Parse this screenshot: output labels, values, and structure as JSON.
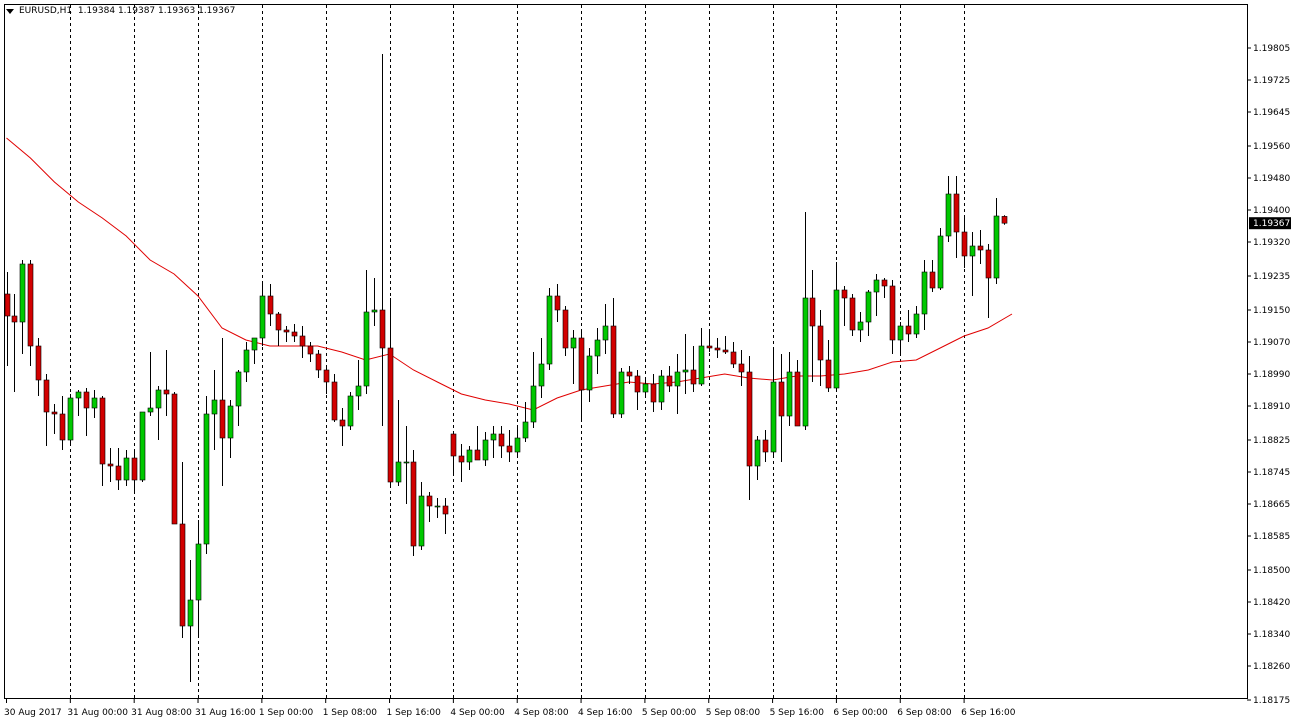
{
  "header": {
    "symbol": "EURUSD,H1",
    "ohlc": "1.19384 1.19387 1.19363 1.19367"
  },
  "colors": {
    "background": "#ffffff",
    "frame": "#000000",
    "bull": "#00c800",
    "bear": "#d20000",
    "wick": "#000000",
    "ma_line": "#e00000",
    "separator": "#000000",
    "price_tag_bg": "#000000",
    "price_tag_text": "#ffffff"
  },
  "chart_data": {
    "type": "candlestick",
    "symbol": "EURUSD",
    "timeframe": "H1",
    "grid": false,
    "ylim": [
      1.18175,
      1.19845
    ],
    "x_tick_labels": [
      "30 Aug 2017",
      "31 Aug 00:00",
      "31 Aug 08:00",
      "31 Aug 16:00",
      "1 Sep 00:00",
      "1 Sep 08:00",
      "1 Sep 16:00",
      "4 Sep 00:00",
      "4 Sep 08:00",
      "4 Sep 16:00",
      "5 Sep 00:00",
      "5 Sep 08:00",
      "5 Sep 16:00",
      "6 Sep 00:00",
      "6 Sep 08:00",
      "6 Sep 16:00"
    ],
    "separator_after_tick": [
      1,
      2,
      3,
      4,
      5,
      6,
      7,
      8,
      9,
      10,
      11,
      12,
      13,
      14,
      15
    ],
    "y_tick_labels": [
      "1.19805",
      "1.19725",
      "1.19645",
      "1.19560",
      "1.19480",
      "1.19400",
      "1.19320",
      "1.19235",
      "1.19150",
      "1.19070",
      "1.18990",
      "1.18910",
      "1.18825",
      "1.18745",
      "1.18665",
      "1.18585",
      "1.18500",
      "1.18420",
      "1.18340",
      "1.18260",
      "1.18175"
    ],
    "y_tick_values": [
      1.19805,
      1.19725,
      1.19645,
      1.1956,
      1.1948,
      1.194,
      1.1932,
      1.19235,
      1.1915,
      1.1907,
      1.1899,
      1.1891,
      1.18825,
      1.18745,
      1.18665,
      1.18585,
      1.185,
      1.1842,
      1.1834,
      1.1826,
      1.18175
    ],
    "current_price": "1.19367",
    "candles": [
      [
        1.1919,
        1.19245,
        1.1901,
        1.19135
      ],
      [
        1.19135,
        1.1919,
        1.18945,
        1.1912
      ],
      [
        1.1912,
        1.19275,
        1.1904,
        1.19265
      ],
      [
        1.19265,
        1.19275,
        1.1901,
        1.1906
      ],
      [
        1.1906,
        1.1908,
        1.18935,
        1.18975
      ],
      [
        1.18975,
        1.1899,
        1.1881,
        1.18895
      ],
      [
        1.18895,
        1.18915,
        1.1884,
        1.1889
      ],
      [
        1.1889,
        1.18935,
        1.188,
        1.18825
      ],
      [
        1.18825,
        1.1894,
        1.18815,
        1.1893
      ],
      [
        1.1893,
        1.1895,
        1.18885,
        1.18945
      ],
      [
        1.18945,
        1.18955,
        1.18835,
        1.18905
      ],
      [
        1.18905,
        1.1895,
        1.1888,
        1.1893
      ],
      [
        1.1893,
        1.18935,
        1.1871,
        1.18765
      ],
      [
        1.18765,
        1.18805,
        1.1872,
        1.1876
      ],
      [
        1.1876,
        1.18805,
        1.187,
        1.18725
      ],
      [
        1.18725,
        1.188,
        1.1871,
        1.1878
      ],
      [
        1.1878,
        1.188,
        1.1869,
        1.18725
      ],
      [
        1.18725,
        1.1889,
        1.1872,
        1.18895
      ],
      [
        1.18895,
        1.19045,
        1.18885,
        1.18905
      ],
      [
        1.18905,
        1.1896,
        1.18825,
        1.1895
      ],
      [
        1.1895,
        1.1905,
        1.18885,
        1.1894
      ],
      [
        1.1894,
        1.18945,
        1.1862,
        1.18615
      ],
      [
        1.18615,
        1.1877,
        1.1833,
        1.1836
      ],
      [
        1.1836,
        1.18525,
        1.1822,
        1.18425
      ],
      [
        1.18425,
        1.18625,
        1.1833,
        1.18565
      ],
      [
        1.18565,
        1.18935,
        1.1854,
        1.1889
      ],
      [
        1.1889,
        1.19,
        1.188,
        1.18925
      ],
      [
        1.18925,
        1.1908,
        1.1871,
        1.1883
      ],
      [
        1.1883,
        1.18925,
        1.1878,
        1.1891
      ],
      [
        1.1891,
        1.19,
        1.1886,
        1.18995
      ],
      [
        1.18995,
        1.1907,
        1.1897,
        1.1905
      ],
      [
        1.1905,
        1.1908,
        1.19015,
        1.1908
      ],
      [
        1.1908,
        1.19215,
        1.1906,
        1.19185
      ],
      [
        1.19185,
        1.19215,
        1.1911,
        1.1914
      ],
      [
        1.1914,
        1.19145,
        1.1906,
        1.191
      ],
      [
        1.191,
        1.1911,
        1.1907,
        1.19095
      ],
      [
        1.19095,
        1.19115,
        1.1907,
        1.19085
      ],
      [
        1.19085,
        1.1911,
        1.1903,
        1.1906
      ],
      [
        1.1906,
        1.1907,
        1.1902,
        1.1904
      ],
      [
        1.1904,
        1.1905,
        1.1898,
        1.19
      ],
      [
        1.19,
        1.1901,
        1.1894,
        1.1897
      ],
      [
        1.1897,
        1.1899,
        1.1887,
        1.18875
      ],
      [
        1.18875,
        1.18905,
        1.1881,
        1.1886
      ],
      [
        1.1886,
        1.18945,
        1.1885,
        1.18935
      ],
      [
        1.18935,
        1.19025,
        1.189,
        1.1896
      ],
      [
        1.1896,
        1.1925,
        1.1894,
        1.19145
      ],
      [
        1.19145,
        1.1923,
        1.1911,
        1.1915
      ],
      [
        1.1915,
        1.1979,
        1.1886,
        1.19055
      ],
      [
        1.19055,
        1.1918,
        1.1871,
        1.1872
      ],
      [
        1.1872,
        1.18925,
        1.1871,
        1.1877
      ],
      [
        1.1877,
        1.1886,
        1.18665,
        1.1877
      ],
      [
        1.1877,
        1.188,
        1.18535,
        1.1856
      ],
      [
        1.1856,
        1.1872,
        1.1855,
        1.18685
      ],
      [
        1.18685,
        1.18695,
        1.1862,
        1.1866
      ],
      [
        1.1866,
        1.1868,
        1.1863,
        1.1866
      ],
      [
        1.1866,
        1.1868,
        1.1859,
        1.1864
      ],
      [
        1.1884,
        1.18845,
        1.1874,
        1.18785
      ],
      [
        1.18785,
        1.18815,
        1.1872,
        1.1877
      ],
      [
        1.1877,
        1.1881,
        1.1875,
        1.188
      ],
      [
        1.188,
        1.1886,
        1.18775,
        1.18775
      ],
      [
        1.18775,
        1.18845,
        1.1876,
        1.18825
      ],
      [
        1.18825,
        1.1886,
        1.1878,
        1.1884
      ],
      [
        1.1884,
        1.1886,
        1.1878,
        1.1881
      ],
      [
        1.1881,
        1.1885,
        1.1877,
        1.18795
      ],
      [
        1.18795,
        1.18855,
        1.18785,
        1.1883
      ],
      [
        1.1883,
        1.1892,
        1.1882,
        1.1887
      ],
      [
        1.1887,
        1.19045,
        1.18855,
        1.1896
      ],
      [
        1.1896,
        1.1908,
        1.1893,
        1.19015
      ],
      [
        1.19015,
        1.19205,
        1.19,
        1.19185
      ],
      [
        1.19185,
        1.19215,
        1.1912,
        1.1915
      ],
      [
        1.1915,
        1.1916,
        1.19035,
        1.19055
      ],
      [
        1.19055,
        1.191,
        1.18965,
        1.1908
      ],
      [
        1.1908,
        1.191,
        1.1887,
        1.1895
      ],
      [
        1.1895,
        1.19055,
        1.1892,
        1.19035
      ],
      [
        1.19035,
        1.19105,
        1.1899,
        1.19075
      ],
      [
        1.19075,
        1.19165,
        1.1904,
        1.1911
      ],
      [
        1.1911,
        1.1918,
        1.1888,
        1.1889
      ],
      [
        1.1889,
        1.19005,
        1.1888,
        1.18995
      ],
      [
        1.18995,
        1.1901,
        1.18965,
        1.18985
      ],
      [
        1.18985,
        1.19,
        1.189,
        1.18945
      ],
      [
        1.18945,
        1.18975,
        1.1893,
        1.18965
      ],
      [
        1.18965,
        1.1899,
        1.18895,
        1.1892
      ],
      [
        1.1892,
        1.19,
        1.189,
        1.18985
      ],
      [
        1.18985,
        1.1901,
        1.18945,
        1.1896
      ],
      [
        1.1896,
        1.1904,
        1.1889,
        1.18995
      ],
      [
        1.18995,
        1.1909,
        1.1894,
        1.19
      ],
      [
        1.19,
        1.1906,
        1.18945,
        1.18965
      ],
      [
        1.18965,
        1.19105,
        1.1896,
        1.1906
      ],
      [
        1.1906,
        1.19095,
        1.19045,
        1.19055
      ],
      [
        1.19055,
        1.1908,
        1.1903,
        1.1905
      ],
      [
        1.1905,
        1.19085,
        1.1904,
        1.19045
      ],
      [
        1.19045,
        1.1907,
        1.19005,
        1.19015
      ],
      [
        1.19015,
        1.1905,
        1.1896,
        1.18995
      ],
      [
        1.18995,
        1.19035,
        1.18675,
        1.1876
      ],
      [
        1.1876,
        1.18835,
        1.18725,
        1.18825
      ],
      [
        1.18825,
        1.1885,
        1.1877,
        1.18795
      ],
      [
        1.18795,
        1.19055,
        1.1878,
        1.1897
      ],
      [
        1.1897,
        1.1904,
        1.1877,
        1.18885
      ],
      [
        1.18885,
        1.19045,
        1.1886,
        1.18995
      ],
      [
        1.18995,
        1.19025,
        1.18865,
        1.1886
      ],
      [
        1.1886,
        1.19395,
        1.1885,
        1.1918
      ],
      [
        1.1918,
        1.1925,
        1.1897,
        1.1911
      ],
      [
        1.1911,
        1.1915,
        1.1896,
        1.19025
      ],
      [
        1.19025,
        1.19075,
        1.18945,
        1.18955
      ],
      [
        1.18955,
        1.1927,
        1.1895,
        1.192
      ],
      [
        1.192,
        1.1921,
        1.1911,
        1.1918
      ],
      [
        1.1918,
        1.1919,
        1.19085,
        1.191
      ],
      [
        1.191,
        1.19145,
        1.1907,
        1.1912
      ],
      [
        1.1912,
        1.192,
        1.19085,
        1.19195
      ],
      [
        1.19195,
        1.1924,
        1.19135,
        1.19225
      ],
      [
        1.19225,
        1.1923,
        1.1918,
        1.1921
      ],
      [
        1.1921,
        1.19225,
        1.1904,
        1.19075
      ],
      [
        1.19075,
        1.1912,
        1.19035,
        1.1911
      ],
      [
        1.1911,
        1.1915,
        1.1907,
        1.1909
      ],
      [
        1.1909,
        1.1916,
        1.1908,
        1.1914
      ],
      [
        1.1914,
        1.19275,
        1.191,
        1.19245
      ],
      [
        1.19245,
        1.19275,
        1.19195,
        1.19205
      ],
      [
        1.19205,
        1.19355,
        1.192,
        1.19335
      ],
      [
        1.19335,
        1.19485,
        1.1932,
        1.1944
      ],
      [
        1.1944,
        1.19485,
        1.1928,
        1.19345
      ],
      [
        1.19345,
        1.19385,
        1.19255,
        1.19285
      ],
      [
        1.19285,
        1.19345,
        1.19185,
        1.1931
      ],
      [
        1.1931,
        1.1935,
        1.19265,
        1.193
      ],
      [
        1.193,
        1.19315,
        1.1913,
        1.1923
      ],
      [
        1.1923,
        1.1943,
        1.19215,
        1.19385
      ],
      [
        1.19384,
        1.19387,
        1.19363,
        1.19367
      ]
    ],
    "moving_average": {
      "label": "",
      "values": [
        [
          0,
          1.1958
        ],
        [
          3,
          1.1953
        ],
        [
          6,
          1.1947
        ],
        [
          9,
          1.1942
        ],
        [
          12,
          1.1938
        ],
        [
          15,
          1.19335
        ],
        [
          18,
          1.19275
        ],
        [
          21,
          1.1924
        ],
        [
          24,
          1.19185
        ],
        [
          27,
          1.19105
        ],
        [
          30,
          1.19075
        ],
        [
          33,
          1.1906
        ],
        [
          36,
          1.1906
        ],
        [
          39,
          1.1906
        ],
        [
          42,
          1.19045
        ],
        [
          45,
          1.19025
        ],
        [
          48,
          1.1904
        ],
        [
          51,
          1.19
        ],
        [
          54,
          1.1897
        ],
        [
          57,
          1.1894
        ],
        [
          60,
          1.18925
        ],
        [
          63,
          1.18915
        ],
        [
          66,
          1.189
        ],
        [
          69,
          1.1893
        ],
        [
          72,
          1.1895
        ],
        [
          75,
          1.1896
        ],
        [
          78,
          1.1897
        ],
        [
          81,
          1.18965
        ],
        [
          84,
          1.1897
        ],
        [
          87,
          1.1898
        ],
        [
          90,
          1.1899
        ],
        [
          93,
          1.1898
        ],
        [
          96,
          1.18975
        ],
        [
          99,
          1.18985
        ],
        [
          102,
          1.18985
        ],
        [
          105,
          1.1899
        ],
        [
          108,
          1.19
        ],
        [
          111,
          1.1902
        ],
        [
          114,
          1.19025
        ],
        [
          117,
          1.19055
        ],
        [
          120,
          1.19085
        ],
        [
          123,
          1.19105
        ],
        [
          126,
          1.1914
        ]
      ]
    }
  }
}
